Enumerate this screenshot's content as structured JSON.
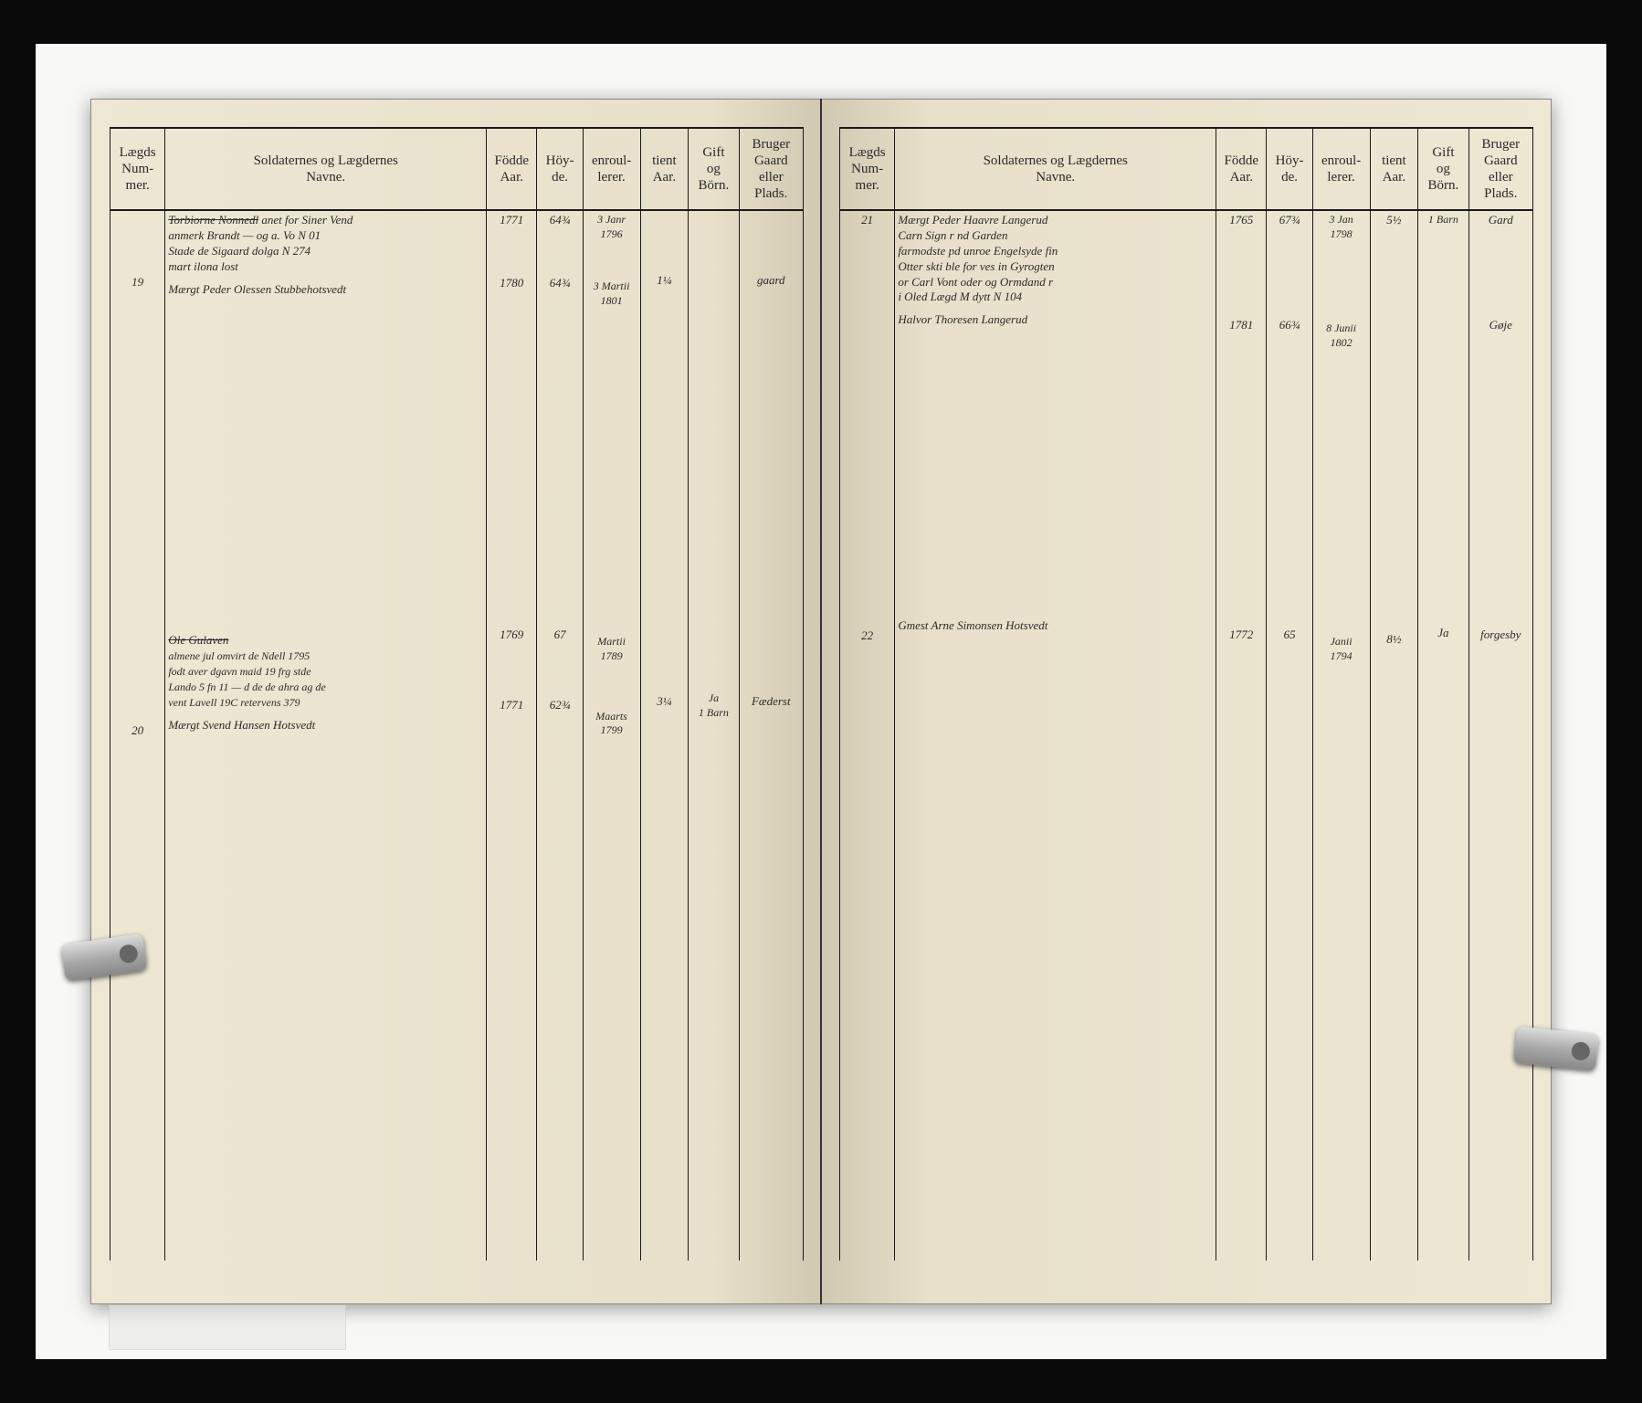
{
  "document": {
    "type": "military-roll-register",
    "background_color": "#0a0a0a",
    "photo_bg": "#f8f8f6",
    "page_bg": "#e8e0ca",
    "ink_color": "#1a1a1a",
    "script_color": "#5a4a3a"
  },
  "headers": {
    "col1": "Lægds\nNum-\nmer.",
    "col2": "Soldaternes og Lægdernes\nNavne.",
    "col3": "Födde\nAar.",
    "col4": "Höy-\nde.",
    "col5": "enroul-\nlerer.",
    "col6": "tient\nAar.",
    "col7": "Gift\nog\nBörn.",
    "col8": "Bruger\nGaard\neller\nPlads."
  },
  "left_page": {
    "entries": [
      {
        "num": "",
        "name_struck": "Torbiorne Nonnedl",
        "note": "anet for Siner Vend",
        "sub": "anmerk Brandt — og a. Vo N 01\nStade de Sigaard dolga N 274\nmart ilona lost",
        "fodde": "1771",
        "hoyde": "64¾",
        "enroul": "3 Janr\n1796",
        "tient": "",
        "gift": "",
        "bruger": ""
      },
      {
        "num": "19",
        "name": "Mærgt Peder Olessen Stubbehotsvedt",
        "fodde": "1780",
        "hoyde": "64¾",
        "enroul": "3 Martii\n1801",
        "tient": "1¼",
        "gift": "",
        "bruger": "gaard"
      },
      {
        "num": "",
        "name_struck": "Ole Gulaven",
        "sub": "almene jul omvirt de Ndell 1795\nfodt aver dgavn maid 19 frg stde\nLando 5 fn 11 — d de de ahra ag de\nvent Lavell 19C retervens 379",
        "fodde": "1769",
        "hoyde": "67",
        "enroul": "Martii\n1789",
        "tient": "",
        "gift": "",
        "bruger": ""
      },
      {
        "num": "20",
        "name": "Mærgt Svend Hansen Hotsvedt",
        "fodde": "1771",
        "hoyde": "62¾",
        "enroul": "Maarts\n1799",
        "tient": "3¼",
        "gift": "Ja\n1 Barn",
        "bruger": "Fæderst"
      }
    ]
  },
  "right_page": {
    "entries": [
      {
        "num": "21",
        "name": "Mærgt Peder Haavre Langerud",
        "sub": "Carn Sign r nd Garden\nfarmodste pd unroe Engelsyde fin\nOtter skti ble for ves in Gyrogten\nor Carl Vont oder og Ormdand r\ni Oled Lægd M dytt N 104",
        "fodde": "1765",
        "hoyde": "67¾",
        "enroul": "3 Jan\n1798",
        "tient": "5½",
        "gift": "1 Barn",
        "bruger": "Gard"
      },
      {
        "num": "",
        "name": "Halvor Thoresen Langerud",
        "fodde": "1781",
        "hoyde": "66¾",
        "enroul": "8 Junii\n1802",
        "tient": "",
        "gift": "",
        "bruger": "Gøje"
      },
      {
        "num": "22",
        "name": "Gmest Arne Simonsen Hotsvedt",
        "fodde": "1772",
        "hoyde": "65",
        "enroul": "Janii\n1794",
        "tient": "8½",
        "gift": "Ja",
        "bruger": "forgesby"
      }
    ]
  }
}
